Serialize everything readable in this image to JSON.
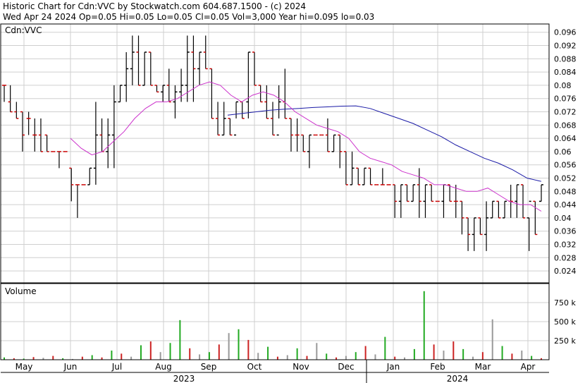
{
  "header": {
    "line1": "Historic Chart for Cdn:VVC by Stockwatch.com 604.687.1500 - (c) 2024",
    "line2": "Wed Apr 24 2024  Op=0.05  Hi=0.05  Lo=0.05  Cl=0.05  Vol=3,000  Year hi=0.095  lo=0.03"
  },
  "chart_data": {
    "type": "ohlc",
    "symbol": "Cdn:VVC",
    "price_panel_label": "Cdn:VVC",
    "volume_panel_label": "Volume",
    "y_ticks": [
      "0.096",
      "0.092",
      "0.088",
      "0.084",
      "0.08",
      "0.076",
      "0.072",
      "0.068",
      "0.064",
      "0.06",
      "0.056",
      "0.052",
      "0.048",
      "0.044",
      "0.04",
      "0.036",
      "0.032",
      "0.028",
      "0.024"
    ],
    "ylim": [
      0.0204,
      0.0985
    ],
    "volume_ticks": [
      "750 k",
      "500 k",
      "250 k"
    ],
    "volume_ylim": [
      0,
      1000000
    ],
    "months": [
      "May",
      "Jun",
      "Jul",
      "Aug",
      "Sep",
      "Oct",
      "Nov",
      "Dec",
      "Jan",
      "Feb",
      "Mar",
      "Apr"
    ],
    "years": [
      "2023",
      "2024"
    ],
    "grid": true,
    "colors": {
      "up": "#000000",
      "down": "#cc0000",
      "flat": "#999999",
      "ma_short": "#cc33cc",
      "ma_long": "#1a1aa6",
      "volume_up": "#22aa22",
      "volume_down": "#cc2222",
      "volume_flat": "#999999",
      "grid": "#cfcfcf"
    },
    "ohlc_segments": [
      [
        0.08,
        0.075,
        0.08,
        0.08
      ],
      [
        0.08,
        0.072,
        0.075,
        0.072
      ],
      [
        0.075,
        0.07,
        0.072,
        0.07
      ],
      [
        0.072,
        0.06,
        0.072,
        0.065
      ],
      [
        0.072,
        0.065,
        0.07,
        0.07
      ],
      [
        0.07,
        0.06,
        0.065,
        0.065
      ],
      [
        0.07,
        0.06,
        0.065,
        0.06
      ],
      [
        0.065,
        0.06,
        0.065,
        0.06
      ],
      [
        0.06,
        0.06,
        0.06,
        0.06
      ],
      [
        0.06,
        0.055,
        0.06,
        0.06
      ],
      [
        0.06,
        0.06,
        0.06,
        0.06
      ],
      [
        0.055,
        0.045,
        0.055,
        0.05
      ],
      [
        0.05,
        0.04,
        0.05,
        0.05
      ],
      [
        0.05,
        0.05,
        0.05,
        0.05
      ],
      [
        0.055,
        0.05,
        0.05,
        0.055
      ],
      [
        0.075,
        0.05,
        0.055,
        0.065
      ],
      [
        0.07,
        0.06,
        0.065,
        0.06
      ],
      [
        0.07,
        0.055,
        0.06,
        0.065
      ],
      [
        0.08,
        0.055,
        0.065,
        0.075
      ],
      [
        0.08,
        0.075,
        0.075,
        0.08
      ],
      [
        0.09,
        0.075,
        0.08,
        0.085
      ],
      [
        0.095,
        0.08,
        0.085,
        0.09
      ],
      [
        0.095,
        0.08,
        0.09,
        0.08
      ],
      [
        0.09,
        0.08,
        0.08,
        0.09
      ],
      [
        0.09,
        0.08,
        0.09,
        0.08
      ],
      [
        0.08,
        0.078,
        0.08,
        0.078
      ],
      [
        0.08,
        0.075,
        0.078,
        0.08
      ],
      [
        0.085,
        0.075,
        0.08,
        0.075
      ],
      [
        0.08,
        0.07,
        0.075,
        0.078
      ],
      [
        0.085,
        0.075,
        0.078,
        0.08
      ],
      [
        0.095,
        0.075,
        0.08,
        0.09
      ],
      [
        0.095,
        0.075,
        0.09,
        0.085
      ],
      [
        0.09,
        0.08,
        0.085,
        0.09
      ],
      [
        0.095,
        0.085,
        0.09,
        0.085
      ],
      [
        0.085,
        0.07,
        0.085,
        0.07
      ],
      [
        0.075,
        0.065,
        0.07,
        0.065
      ],
      [
        0.075,
        0.065,
        0.065,
        0.07
      ],
      [
        0.07,
        0.065,
        0.07,
        0.065
      ],
      [
        0.075,
        0.07,
        0.065,
        0.075
      ],
      [
        0.075,
        0.07,
        0.075,
        0.07
      ],
      [
        0.09,
        0.07,
        0.075,
        0.09
      ],
      [
        0.09,
        0.08,
        0.09,
        0.08
      ],
      [
        0.08,
        0.075,
        0.08,
        0.075
      ],
      [
        0.08,
        0.07,
        0.075,
        0.07
      ],
      [
        0.075,
        0.065,
        0.07,
        0.065
      ],
      [
        0.08,
        0.07,
        0.065,
        0.075
      ],
      [
        0.085,
        0.07,
        0.075,
        0.07
      ],
      [
        0.07,
        0.06,
        0.07,
        0.065
      ],
      [
        0.07,
        0.06,
        0.065,
        0.065
      ],
      [
        0.065,
        0.06,
        0.065,
        0.06
      ],
      [
        0.065,
        0.055,
        0.06,
        0.065
      ],
      [
        0.065,
        0.065,
        0.065,
        0.065
      ],
      [
        0.065,
        0.065,
        0.065,
        0.065
      ],
      [
        0.07,
        0.06,
        0.065,
        0.06
      ],
      [
        0.065,
        0.06,
        0.06,
        0.065
      ],
      [
        0.065,
        0.055,
        0.065,
        0.06
      ],
      [
        0.06,
        0.05,
        0.06,
        0.05
      ],
      [
        0.06,
        0.05,
        0.05,
        0.055
      ],
      [
        0.055,
        0.05,
        0.055,
        0.05
      ],
      [
        0.055,
        0.05,
        0.05,
        0.055
      ],
      [
        0.055,
        0.05,
        0.055,
        0.05
      ],
      [
        0.05,
        0.05,
        0.05,
        0.05
      ],
      [
        0.055,
        0.05,
        0.05,
        0.05
      ],
      [
        0.05,
        0.05,
        0.05,
        0.05
      ],
      [
        0.05,
        0.04,
        0.05,
        0.045
      ],
      [
        0.05,
        0.04,
        0.045,
        0.05
      ],
      [
        0.05,
        0.045,
        0.05,
        0.045
      ],
      [
        0.05,
        0.045,
        0.045,
        0.05
      ],
      [
        0.055,
        0.04,
        0.05,
        0.045
      ],
      [
        0.05,
        0.04,
        0.045,
        0.05
      ],
      [
        0.05,
        0.045,
        0.05,
        0.045
      ],
      [
        0.045,
        0.045,
        0.045,
        0.045
      ],
      [
        0.05,
        0.04,
        0.045,
        0.05
      ],
      [
        0.05,
        0.045,
        0.05,
        0.045
      ],
      [
        0.05,
        0.04,
        0.045,
        0.045
      ],
      [
        0.045,
        0.035,
        0.045,
        0.04
      ],
      [
        0.04,
        0.03,
        0.04,
        0.035
      ],
      [
        0.04,
        0.03,
        0.035,
        0.04
      ],
      [
        0.04,
        0.035,
        0.04,
        0.035
      ],
      [
        0.045,
        0.03,
        0.035,
        0.04
      ],
      [
        0.045,
        0.04,
        0.04,
        0.045
      ],
      [
        0.045,
        0.04,
        0.045,
        0.04
      ],
      [
        0.045,
        0.04,
        0.04,
        0.045
      ],
      [
        0.05,
        0.04,
        0.045,
        0.045
      ],
      [
        0.05,
        0.04,
        0.045,
        0.05
      ],
      [
        0.05,
        0.04,
        0.05,
        0.04
      ],
      [
        0.04,
        0.03,
        0.04,
        0.045
      ],
      [
        0.045,
        0.035,
        0.045,
        0.035
      ],
      [
        0.05,
        0.045,
        0.045,
        0.05
      ]
    ],
    "ma_short": [
      0.064,
      0.061,
      0.059,
      0.06,
      0.063,
      0.066,
      0.07,
      0.073,
      0.075,
      0.075,
      0.076,
      0.078,
      0.08,
      0.081,
      0.08,
      0.077,
      0.075,
      0.077,
      0.078,
      0.077,
      0.075,
      0.072,
      0.07,
      0.068,
      0.067,
      0.066,
      0.064,
      0.06,
      0.058,
      0.057,
      0.056,
      0.054,
      0.053,
      0.052,
      0.05,
      0.05,
      0.049,
      0.048,
      0.048,
      0.049,
      0.047,
      0.045,
      0.044,
      0.044,
      0.042
    ],
    "ma_long": [
      0.071,
      0.0715,
      0.072,
      0.0725,
      0.0728,
      0.073,
      0.0733,
      0.0735,
      0.0737,
      0.0738,
      0.073,
      0.0715,
      0.07,
      0.0685,
      0.0665,
      0.0645,
      0.062,
      0.06,
      0.058,
      0.0565,
      0.0545,
      0.052,
      0.051
    ],
    "volume_segments": [
      [
        30000,
        0
      ],
      [
        20000,
        1
      ],
      [
        15000,
        0
      ],
      [
        35000,
        1
      ],
      [
        25000,
        2
      ],
      [
        50000,
        1
      ],
      [
        20000,
        0
      ],
      [
        10000,
        2
      ],
      [
        40000,
        1
      ],
      [
        60000,
        0
      ],
      [
        30000,
        1
      ],
      [
        120000,
        0
      ],
      [
        80000,
        1
      ],
      [
        40000,
        2
      ],
      [
        190000,
        0
      ],
      [
        240000,
        1
      ],
      [
        100000,
        2
      ],
      [
        220000,
        0
      ],
      [
        520000,
        0
      ],
      [
        150000,
        1
      ],
      [
        70000,
        2
      ],
      [
        100000,
        0
      ],
      [
        200000,
        1
      ],
      [
        350000,
        2
      ],
      [
        400000,
        0
      ],
      [
        260000,
        1
      ],
      [
        90000,
        2
      ],
      [
        170000,
        0
      ],
      [
        40000,
        1
      ],
      [
        60000,
        2
      ],
      [
        150000,
        0
      ],
      [
        50000,
        1
      ],
      [
        220000,
        2
      ],
      [
        80000,
        0
      ],
      [
        30000,
        1
      ],
      [
        50000,
        2
      ],
      [
        100000,
        0
      ],
      [
        180000,
        1
      ],
      [
        70000,
        2
      ],
      [
        300000,
        0
      ],
      [
        40000,
        1
      ],
      [
        30000,
        2
      ],
      [
        140000,
        0
      ],
      [
        900000,
        0
      ],
      [
        200000,
        1
      ],
      [
        120000,
        2
      ],
      [
        240000,
        1
      ],
      [
        140000,
        0
      ],
      [
        40000,
        2
      ],
      [
        100000,
        1
      ],
      [
        530000,
        2
      ],
      [
        180000,
        0
      ],
      [
        80000,
        1
      ],
      [
        120000,
        2
      ],
      [
        50000,
        0
      ],
      [
        20000,
        1
      ]
    ]
  }
}
